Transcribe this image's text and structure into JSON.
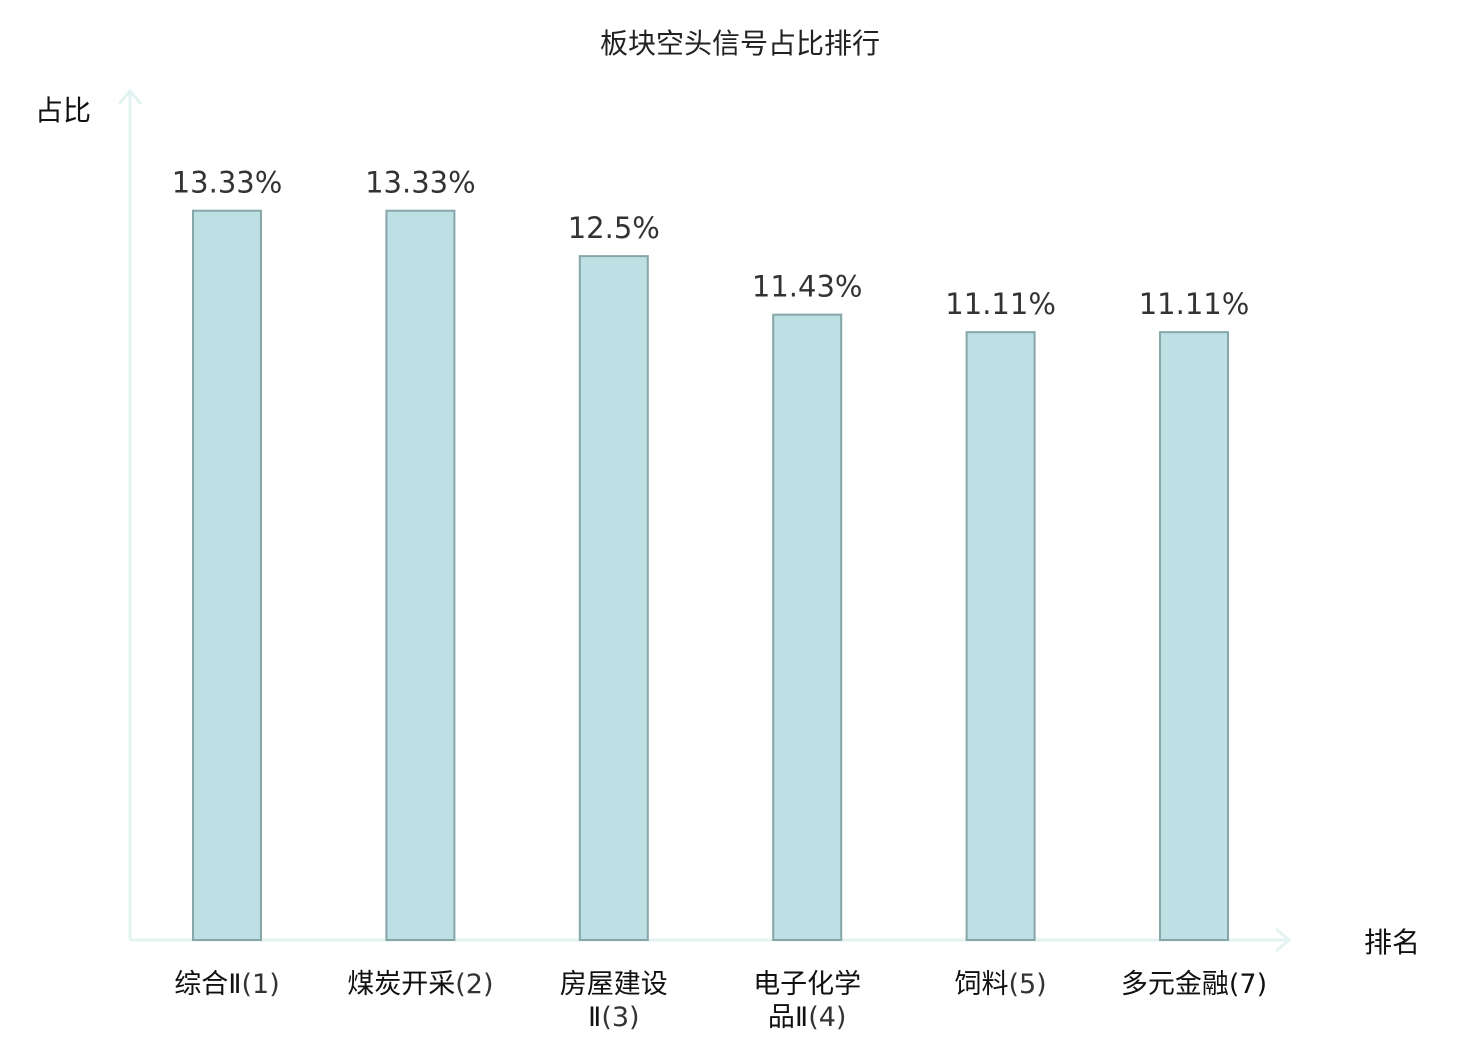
{
  "chart_data": {
    "type": "bar",
    "title": "板块空头信号占比排行",
    "ylabel": "占比",
    "xlabel": "排名",
    "ylim": [
      0,
      15.5
    ],
    "grid": false,
    "categories": [
      {
        "lines": [
          "综合Ⅱ"
        ],
        "rank": "(1)",
        "highlight": false
      },
      {
        "lines": [
          "煤炭开采"
        ],
        "rank": "(2)",
        "highlight": false
      },
      {
        "lines": [
          "房屋建设",
          "Ⅱ"
        ],
        "rank": "(3)",
        "highlight": false
      },
      {
        "lines": [
          "电子化学",
          "品Ⅱ"
        ],
        "rank": "(4)",
        "highlight": false
      },
      {
        "lines": [
          "饲料"
        ],
        "rank": "(5)",
        "highlight": false
      },
      {
        "lines": [
          "多元金融"
        ],
        "rank": "(7)",
        "highlight": true
      }
    ],
    "values": [
      13.33,
      13.33,
      12.5,
      11.43,
      11.11,
      11.11
    ],
    "value_labels": [
      "13.33%",
      "13.33%",
      "12.5%",
      "11.43%",
      "11.11%",
      "11.11%"
    ],
    "colors": {
      "bar_fill": "#bce0e3",
      "bar_stroke": "#86a6a8",
      "axis": "#e2f3f1",
      "highlight_text": "#e60000"
    }
  }
}
